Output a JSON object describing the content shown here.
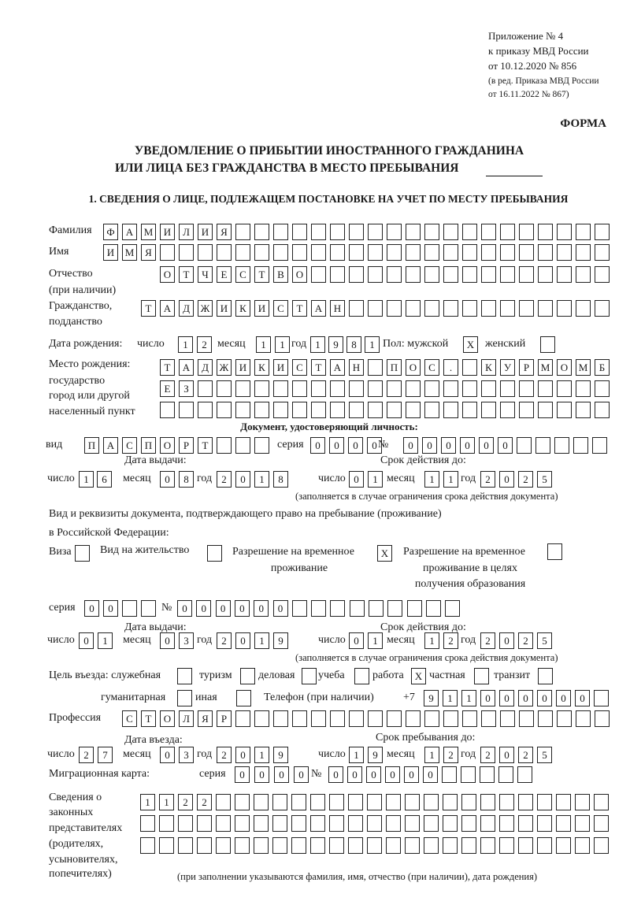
{
  "header": {
    "appendix": "Приложение № 4",
    "order": "к приказу МВД России",
    "order_date": "от 10.12.2020 № 856",
    "edition": "(в ред. Приказа МВД России",
    "edition_date": "от 16.11.2022 № 867)",
    "form_label": "ФОРМА",
    "title_line1": "УВЕДОМЛЕНИЕ О ПРИБЫТИИ ИНОСТРАННОГО ГРАЖДАНИНА",
    "title_line2": "ИЛИ ЛИЦА БЕЗ ГРАЖДАНСТВА В МЕСТО ПРЕБЫВАНИЯ",
    "section1": "1. СВЕДЕНИЯ О ЛИЦЕ, ПОДЛЕЖАЩЕМ ПОСТАНОВКЕ НА УЧЕТ ПО МЕСТУ ПРЕБЫВАНИЯ"
  },
  "labels": {
    "surname": "Фамилия",
    "name": "Имя",
    "patronymic": "Отчество",
    "patronymic_note": "(при наличии)",
    "citizenship": "Гражданство,",
    "citizenship2": "подданство",
    "birth_date": "Дата рождения:",
    "day": "число",
    "month": "месяц",
    "year": "год",
    "sex_male": "Пол: мужской",
    "sex_female": "женский",
    "birth_place": "Место рождения:",
    "birth_place2": "государство",
    "birth_place3": "город или другой",
    "birth_place4": "населенный пункт",
    "id_doc": "Документ, удостоверяющий личность:",
    "kind": "вид",
    "series": "серия",
    "number": "№",
    "issue_date": "Дата выдачи:",
    "valid_until": "Срок действия до:",
    "valid_note": "(заполняется в случае ограничения срока действия документа)",
    "stay_doc": "Вид и реквизиты документа, подтверждающего право на пребывание (проживание)",
    "stay_doc2": "в Российской Федерации:",
    "visa": "Виза",
    "residence": "Вид на жительство",
    "trp": "Разрешение на временное",
    "trp2": "проживание",
    "trp_edu": "Разрешение на временное",
    "trp_edu2": "проживание в целях",
    "trp_edu3": "получения образования",
    "purpose": "Цель въезда: служебная",
    "tourism": "туризм",
    "business": "деловая",
    "study": "учеба",
    "work": "работа",
    "private": "частная",
    "transit": "транзит",
    "humanitarian": "гуманитарная",
    "other": "иная",
    "phone": "Телефон (при наличии)",
    "phone_prefix": "+7",
    "profession": "Профессия",
    "entry_date": "Дата въезда:",
    "stay_until": "Срок пребывания до:",
    "migration_card": "Миграционная карта:",
    "reps1": "Сведения о",
    "reps2": "законных",
    "reps3": "представителях",
    "reps4": "(родителях,",
    "reps5": "усыновителях,",
    "reps6": "попечителях)",
    "reps_note": "(при заполнении указываются фамилия, имя, отчество (при наличии), дата рождения)"
  },
  "person": {
    "surname": {
      "value": "ФАМИЛИЯ",
      "cells": 27
    },
    "name": {
      "value": "ИМЯ",
      "cells": 27
    },
    "patronymic": {
      "value": "ОТЧЕСТВО",
      "cells": 24
    },
    "citizenship": {
      "value": "ТАДЖИКИСТАН",
      "cells": 25
    },
    "birth_day": {
      "value": "12",
      "cells": 2
    },
    "birth_month": {
      "value": "11",
      "cells": 2
    },
    "birth_year": {
      "value": "1981",
      "cells": 4
    },
    "sex_male": {
      "value": "X",
      "cells": 1
    },
    "sex_female": {
      "value": "",
      "cells": 1
    },
    "birth_place_1": {
      "value": "ТАДЖИКИСТАН ПОС. КУРМОМБ",
      "cells": 24
    },
    "birth_place_2": {
      "value": "ЕЗ",
      "cells": 24
    },
    "birth_place_3": {
      "value": "",
      "cells": 24
    }
  },
  "id_document": {
    "kind": {
      "value": "ПАСПОРТ",
      "cells": 10
    },
    "series": {
      "value": "0000",
      "cells": 4
    },
    "number": {
      "value": "000000",
      "cells": 11
    },
    "issue_day": {
      "value": "16",
      "cells": 2
    },
    "issue_month": {
      "value": "08",
      "cells": 2
    },
    "issue_year": {
      "value": "2018",
      "cells": 4
    },
    "valid_day": {
      "value": "01",
      "cells": 2
    },
    "valid_month": {
      "value": "11",
      "cells": 2
    },
    "valid_year": {
      "value": "2025",
      "cells": 4
    }
  },
  "stay_document": {
    "visa": {
      "value": "",
      "cells": 1
    },
    "residence": {
      "value": "",
      "cells": 1
    },
    "trp": {
      "value": "X",
      "cells": 1
    },
    "trp_edu": {
      "value": "",
      "cells": 1
    },
    "series": {
      "value": "00",
      "cells": 4
    },
    "number": {
      "value": "000000",
      "cells": 15
    },
    "issue_day": {
      "value": "01",
      "cells": 2
    },
    "issue_month": {
      "value": "03",
      "cells": 2
    },
    "issue_year": {
      "value": "2019",
      "cells": 4
    },
    "valid_day": {
      "value": "01",
      "cells": 2
    },
    "valid_month": {
      "value": "12",
      "cells": 2
    },
    "valid_year": {
      "value": "2025",
      "cells": 4
    }
  },
  "purpose": {
    "official": {
      "value": "",
      "cells": 1
    },
    "tourism": {
      "value": "",
      "cells": 1
    },
    "business": {
      "value": "",
      "cells": 1
    },
    "study": {
      "value": "",
      "cells": 1
    },
    "work": {
      "value": "X",
      "cells": 1
    },
    "private": {
      "value": "",
      "cells": 1
    },
    "transit": {
      "value": "",
      "cells": 1
    },
    "humanitarian": {
      "value": "",
      "cells": 1
    },
    "other": {
      "value": "",
      "cells": 1
    }
  },
  "phone": {
    "value": "911000000",
    "cells": 10
  },
  "profession": {
    "value": "СТОЛЯР",
    "cells": 26
  },
  "entry": {
    "day": {
      "value": "27",
      "cells": 2
    },
    "month": {
      "value": "03",
      "cells": 2
    },
    "year": {
      "value": "2019",
      "cells": 4
    },
    "until_day": {
      "value": "19",
      "cells": 2
    },
    "until_month": {
      "value": "12",
      "cells": 2
    },
    "until_year": {
      "value": "2025",
      "cells": 4
    }
  },
  "migration_card": {
    "series": {
      "value": "0000",
      "cells": 4
    },
    "number": {
      "value": "000000",
      "cells": 11
    }
  },
  "representatives": {
    "row1": {
      "value": "1122",
      "cells": 25
    },
    "row2": {
      "value": "",
      "cells": 25
    },
    "row3": {
      "value": "",
      "cells": 25
    }
  }
}
